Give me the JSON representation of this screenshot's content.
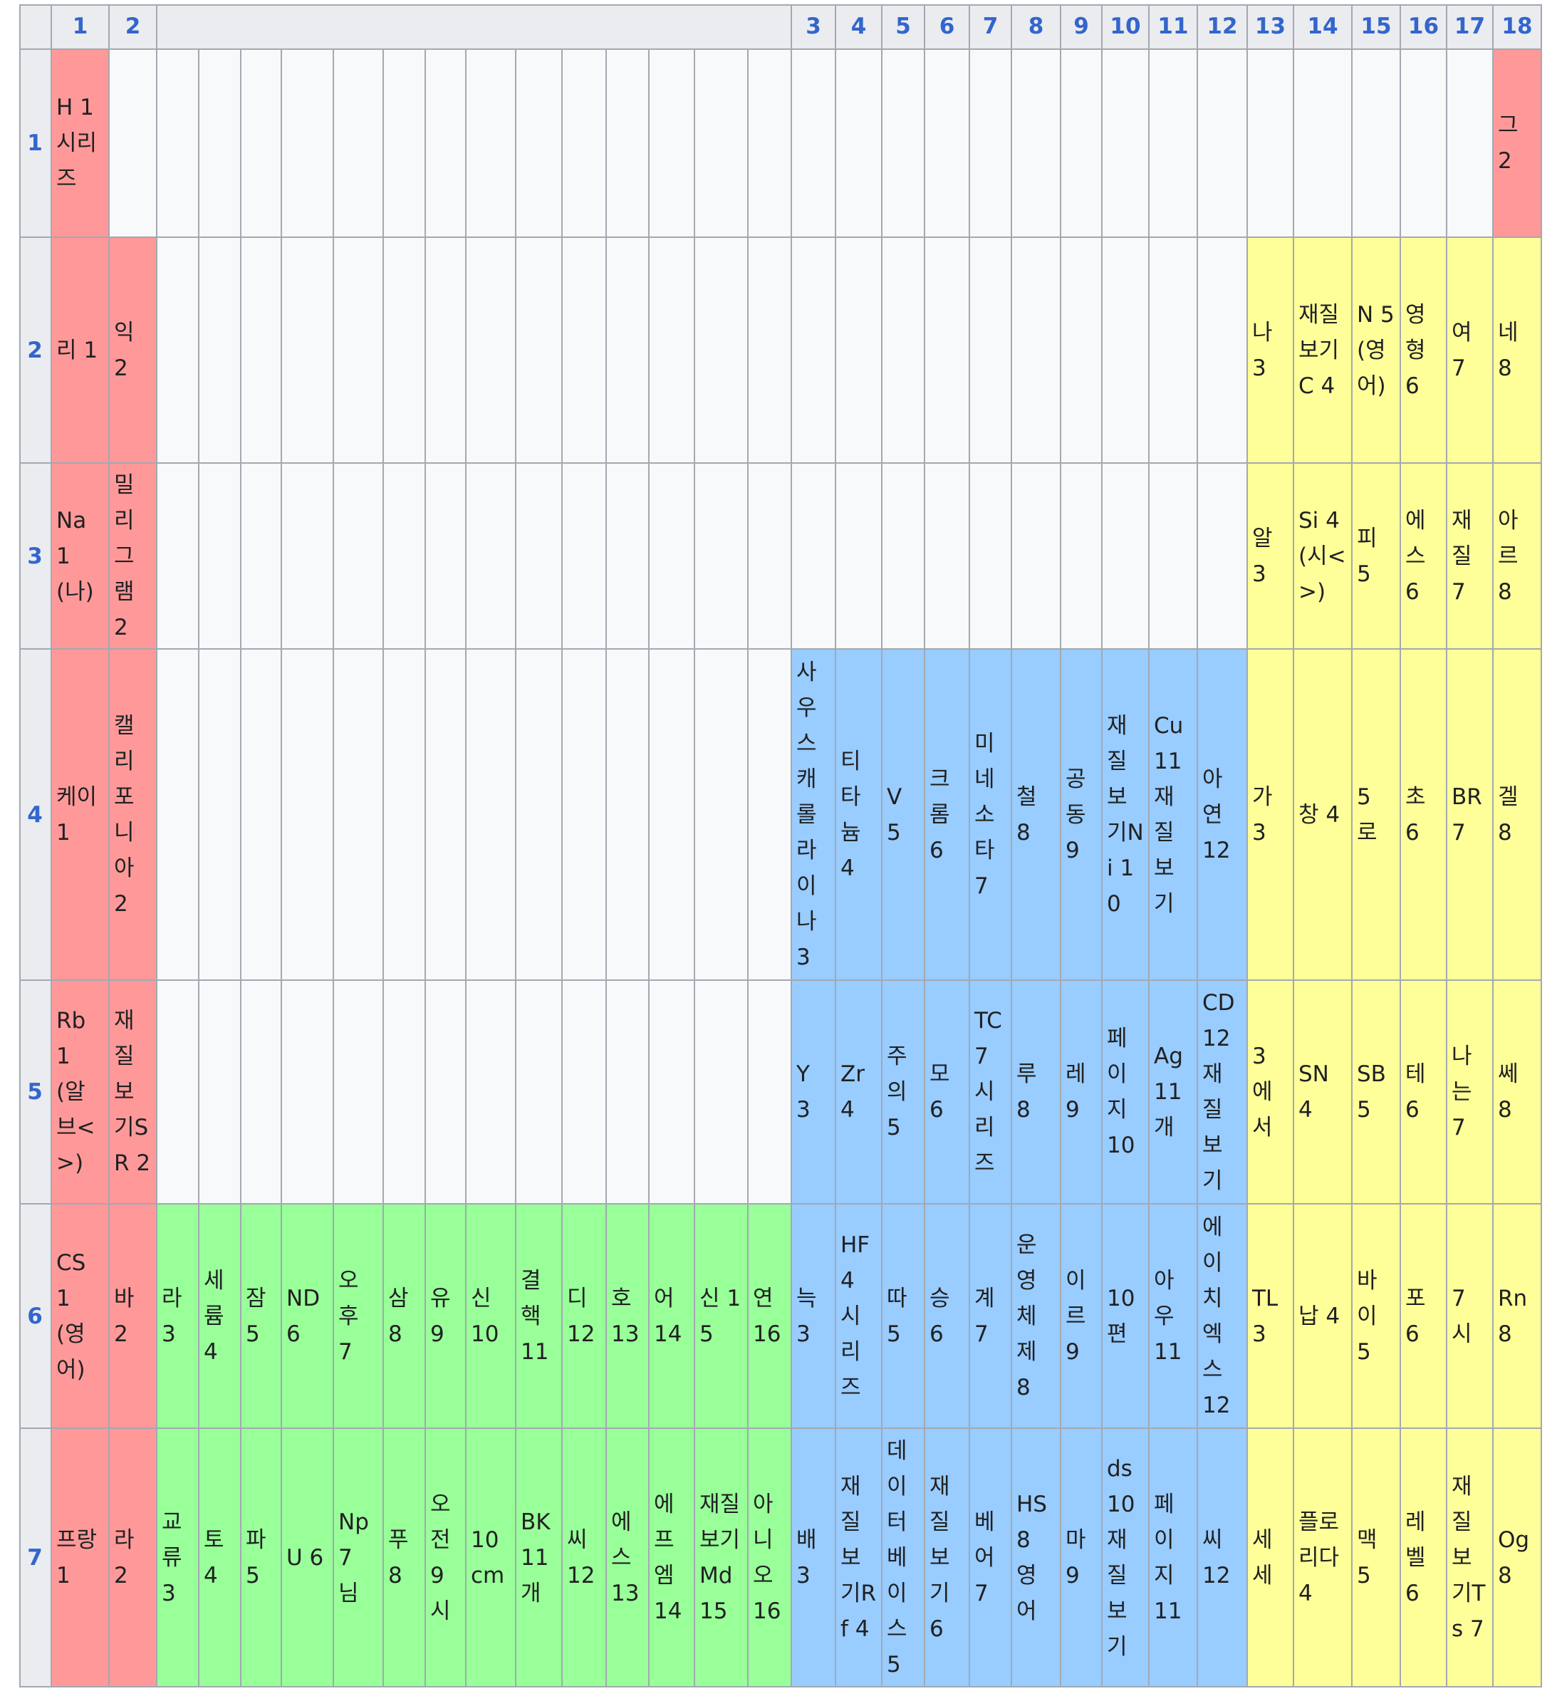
{
  "column_headers": [
    "1",
    "2",
    "",
    "3",
    "4",
    "5",
    "6",
    "7",
    "8",
    "9",
    "10",
    "11",
    "12",
    "13",
    "14",
    "15",
    "16",
    "17",
    "18"
  ],
  "row_headers": [
    "1",
    "2",
    "3",
    "4",
    "5",
    "6",
    "7"
  ],
  "colors": {
    "alkali": "#ff9999",
    "p_block": "#ffff99",
    "transition": "#99ccff",
    "f_block": "#99ff99",
    "header": "#eaecf0",
    "empty": "#f8f9fa",
    "link": "#3366cc"
  },
  "rows": [
    {
      "s": [
        {
          "text": "H 1 시리즈",
          "color": "alkali"
        },
        {
          "text": "",
          "color": "empty"
        }
      ],
      "f": [],
      "d": [],
      "p": [
        {
          "text": "",
          "color": "empty"
        },
        {
          "text": "",
          "color": "empty"
        },
        {
          "text": "",
          "color": "empty"
        },
        {
          "text": "",
          "color": "empty"
        },
        {
          "text": "",
          "color": "empty"
        },
        {
          "text": "그 2",
          "color": "alkali"
        }
      ]
    },
    {
      "s": [
        {
          "text": "리 1",
          "color": "alkali"
        },
        {
          "text": "익 2",
          "color": "alkali"
        }
      ],
      "f": [],
      "d": [],
      "p": [
        {
          "text": "나 3",
          "color": "p_block"
        },
        {
          "text": "재질보기C 4",
          "color": "p_block"
        },
        {
          "text": "N 5 (영어)",
          "color": "p_block"
        },
        {
          "text": "영형 6",
          "color": "p_block"
        },
        {
          "text": "여 7",
          "color": "p_block"
        },
        {
          "text": "네 8",
          "color": "p_block"
        }
      ]
    },
    {
      "s": [
        {
          "text": "Na 1 (나)",
          "color": "alkali"
        },
        {
          "text": "밀리그램 2",
          "color": "alkali"
        }
      ],
      "f": [],
      "d": [],
      "p": [
        {
          "text": "알 3",
          "color": "p_block"
        },
        {
          "text": "Si 4 (시<>)",
          "color": "p_block"
        },
        {
          "text": "피 5",
          "color": "p_block"
        },
        {
          "text": "에스 6",
          "color": "p_block"
        },
        {
          "text": "재질 7",
          "color": "p_block"
        },
        {
          "text": "아르 8",
          "color": "p_block"
        }
      ]
    },
    {
      "s": [
        {
          "text": "케이 1",
          "color": "alkali"
        },
        {
          "text": "캘리포니아 2",
          "color": "alkali"
        }
      ],
      "f": [],
      "d": [
        {
          "text": "사우스캐롤라이나 3"
        },
        {
          "text": "티타늄 4"
        },
        {
          "text": "V 5"
        },
        {
          "text": "크롬 6"
        },
        {
          "text": "미네소타 7"
        },
        {
          "text": "철 8"
        },
        {
          "text": "공동 9"
        },
        {
          "text": "재질보기Ni 10"
        },
        {
          "text": "Cu 11 재질보기"
        },
        {
          "text": "아연 12"
        }
      ],
      "p": [
        {
          "text": "가 3",
          "color": "p_block"
        },
        {
          "text": "창 4",
          "color": "p_block"
        },
        {
          "text": "5 로",
          "color": "p_block"
        },
        {
          "text": "초 6",
          "color": "p_block"
        },
        {
          "text": "BR 7",
          "color": "p_block"
        },
        {
          "text": "겔 8",
          "color": "p_block"
        }
      ]
    },
    {
      "s": [
        {
          "text": "Rb 1 (알브<>)",
          "color": "alkali"
        },
        {
          "text": "재질보기SR 2",
          "color": "alkali"
        }
      ],
      "f": [],
      "d": [
        {
          "text": "Y 3"
        },
        {
          "text": "Zr 4"
        },
        {
          "text": "주의 5"
        },
        {
          "text": "모 6"
        },
        {
          "text": "TC 7 시리즈"
        },
        {
          "text": "루 8"
        },
        {
          "text": "레 9"
        },
        {
          "text": "페이지 10"
        },
        {
          "text": "Ag 11 개"
        },
        {
          "text": "CD 12 재질보기"
        }
      ],
      "p": [
        {
          "text": "3 에서",
          "color": "p_block"
        },
        {
          "text": "SN 4",
          "color": "p_block"
        },
        {
          "text": "SB 5",
          "color": "p_block"
        },
        {
          "text": "테 6",
          "color": "p_block"
        },
        {
          "text": "나는 7",
          "color": "p_block"
        },
        {
          "text": "쎄 8",
          "color": "p_block"
        }
      ]
    },
    {
      "s": [
        {
          "text": "CS 1 (영어)",
          "color": "alkali"
        },
        {
          "text": "바 2",
          "color": "alkali"
        }
      ],
      "f": [
        {
          "text": "라 3"
        },
        {
          "text": "세륨 4"
        },
        {
          "text": "잠 5"
        },
        {
          "text": "ND 6"
        },
        {
          "text": "오후 7"
        },
        {
          "text": "삼 8"
        },
        {
          "text": "유 9"
        },
        {
          "text": "신 10"
        },
        {
          "text": "결핵 11"
        },
        {
          "text": "디 12"
        },
        {
          "text": "호 13"
        },
        {
          "text": "어 14"
        },
        {
          "text": "신 15"
        },
        {
          "text": "연 16"
        }
      ],
      "d": [
        {
          "text": "늑 3"
        },
        {
          "text": "HF 4 시리즈"
        },
        {
          "text": "따 5"
        },
        {
          "text": "승 6"
        },
        {
          "text": "계 7"
        },
        {
          "text": "운영체제 8"
        },
        {
          "text": "이르 9"
        },
        {
          "text": "10 편"
        },
        {
          "text": "아우 11"
        },
        {
          "text": "에이치엑스 12"
        }
      ],
      "p": [
        {
          "text": "TL 3",
          "color": "p_block"
        },
        {
          "text": "납 4",
          "color": "p_block"
        },
        {
          "text": "바이 5",
          "color": "p_block"
        },
        {
          "text": "포 6",
          "color": "p_block"
        },
        {
          "text": "7 시",
          "color": "p_block"
        },
        {
          "text": "Rn 8",
          "color": "p_block"
        }
      ]
    },
    {
      "s": [
        {
          "text": "프랑 1",
          "color": "alkali"
        },
        {
          "text": "라 2",
          "color": "alkali"
        }
      ],
      "f": [
        {
          "text": "교류 3"
        },
        {
          "text": "토 4"
        },
        {
          "text": "파 5"
        },
        {
          "text": "U 6"
        },
        {
          "text": "Np 7 님"
        },
        {
          "text": "푸 8"
        },
        {
          "text": "오전 9 시"
        },
        {
          "text": "10 cm"
        },
        {
          "text": "BK 11 개"
        },
        {
          "text": "씨 12"
        },
        {
          "text": "에스 13"
        },
        {
          "text": "에프엠 14"
        },
        {
          "text": "재질보기Md 15"
        },
        {
          "text": "아니오 16"
        }
      ],
      "d": [
        {
          "text": "배 3"
        },
        {
          "text": "재질보기Rf 4"
        },
        {
          "text": "데이터베이스 5"
        },
        {
          "text": "재질보기 6"
        },
        {
          "text": "베어 7"
        },
        {
          "text": "HS 8 영어"
        },
        {
          "text": "마 9"
        },
        {
          "text": "ds 10 재질보기"
        },
        {
          "text": "페이지 11"
        },
        {
          "text": "씨 12"
        }
      ],
      "p": [
        {
          "text": "세세",
          "color": "p_block"
        },
        {
          "text": "플로리다 4",
          "color": "p_block"
        },
        {
          "text": "맥 5",
          "color": "p_block"
        },
        {
          "text": "레벨 6",
          "color": "p_block"
        },
        {
          "text": "재질보기Ts 7",
          "color": "p_block"
        },
        {
          "text": "Og 8",
          "color": "p_block"
        }
      ]
    }
  ]
}
